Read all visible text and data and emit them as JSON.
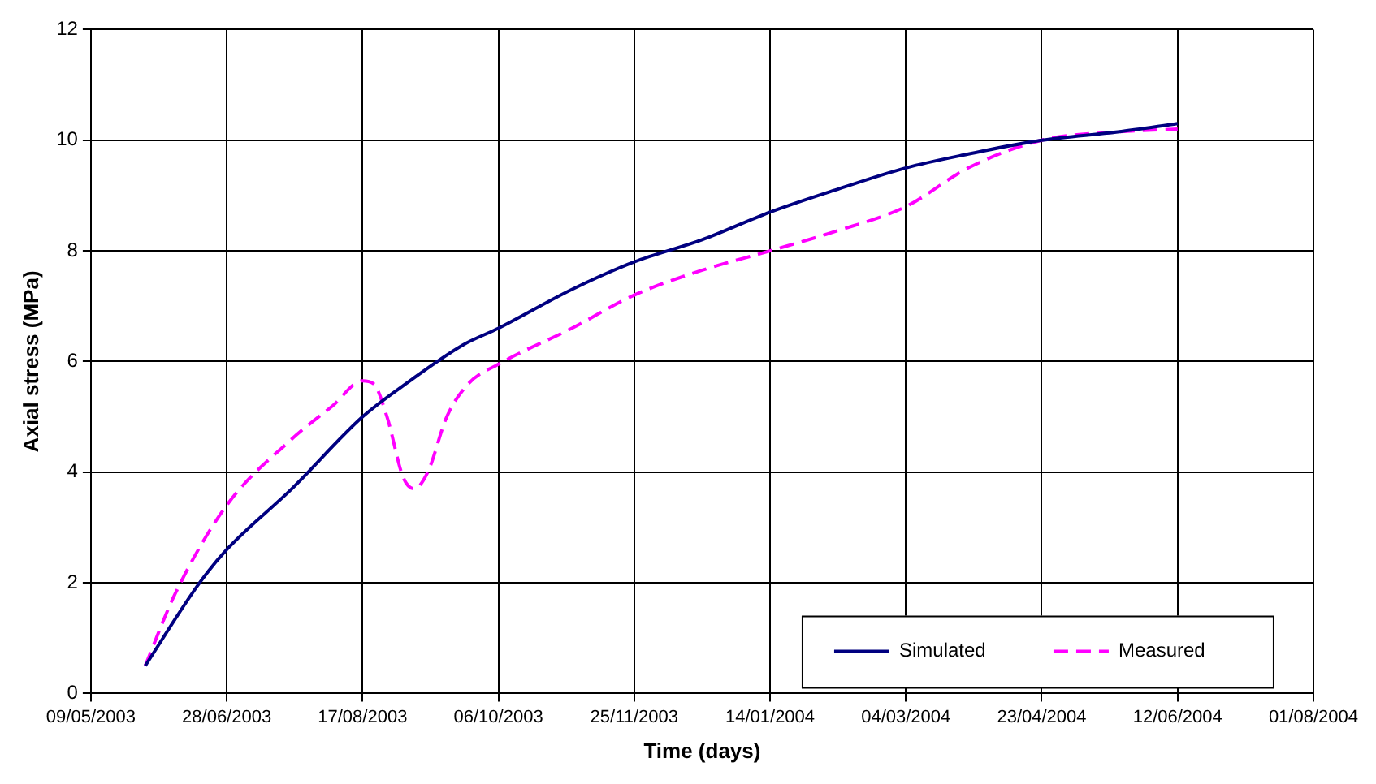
{
  "chart_data": {
    "type": "line",
    "xlabel": "Time (days)",
    "ylabel": "Axial stress (MPa)",
    "xlim": [
      "2003-05-09",
      "2004-08-01"
    ],
    "xticks": [
      {
        "value": "2003-05-09",
        "label": "09/05/2003"
      },
      {
        "value": "2003-06-28",
        "label": "28/06/2003"
      },
      {
        "value": "2003-08-17",
        "label": "17/08/2003"
      },
      {
        "value": "2003-10-06",
        "label": "06/10/2003"
      },
      {
        "value": "2003-11-25",
        "label": "25/11/2003"
      },
      {
        "value": "2004-01-14",
        "label": "14/01/2004"
      },
      {
        "value": "2004-03-04",
        "label": "04/03/2004"
      },
      {
        "value": "2004-04-23",
        "label": "23/04/2004"
      },
      {
        "value": "2004-06-12",
        "label": "12/06/2004"
      },
      {
        "value": "2004-08-01",
        "label": "01/08/2004"
      }
    ],
    "ylim": [
      0,
      12
    ],
    "yticks": [
      0,
      2,
      4,
      6,
      8,
      10,
      12
    ],
    "grid": true,
    "legend": "bottom right",
    "marker": "none",
    "series": [
      {
        "name": "Simulated",
        "color": "#000080",
        "line_style": "solid",
        "x": [
          "2003-05-29",
          "2003-06-18",
          "2003-06-28",
          "2003-07-22",
          "2003-08-17",
          "2003-09-02",
          "2003-09-23",
          "2003-10-06",
          "2003-11-02",
          "2003-11-25",
          "2003-12-20",
          "2004-01-14",
          "2004-02-07",
          "2004-03-04",
          "2004-03-27",
          "2004-04-23",
          "2004-05-21",
          "2004-06-12"
        ],
        "values": [
          0.5,
          2.0,
          2.6,
          3.7,
          5.0,
          5.6,
          6.3,
          6.6,
          7.3,
          7.8,
          8.2,
          8.7,
          9.1,
          9.5,
          9.75,
          10.0,
          10.15,
          10.3
        ]
      },
      {
        "name": "Measured",
        "color": "#ff00ff",
        "line_style": "dashed",
        "x": [
          "2003-05-29",
          "2003-06-09",
          "2003-06-28",
          "2003-07-22",
          "2003-08-06",
          "2003-08-17",
          "2003-08-21",
          "2003-08-26",
          "2003-09-01",
          "2003-09-05",
          "2003-09-10",
          "2003-09-17",
          "2003-09-25",
          "2003-10-06",
          "2003-11-02",
          "2003-11-25",
          "2003-12-20",
          "2004-01-14",
          "2004-02-07",
          "2004-03-04",
          "2004-03-27",
          "2004-04-23",
          "2004-05-21",
          "2004-06-12"
        ],
        "values": [
          0.5,
          1.8,
          3.4,
          4.6,
          5.2,
          5.65,
          5.6,
          5.0,
          3.9,
          3.7,
          4.0,
          5.0,
          5.6,
          5.95,
          6.6,
          7.2,
          7.65,
          8.0,
          8.35,
          8.8,
          9.5,
          10.0,
          10.15,
          10.2
        ]
      }
    ]
  }
}
